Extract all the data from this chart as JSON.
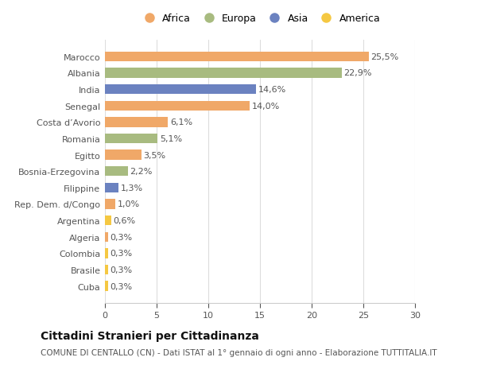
{
  "categories": [
    "Cuba",
    "Brasile",
    "Colombia",
    "Algeria",
    "Argentina",
    "Rep. Dem. d/Congo",
    "Filippine",
    "Bosnia-Erzegovina",
    "Egitto",
    "Romania",
    "Costa d’Avorio",
    "Senegal",
    "India",
    "Albania",
    "Marocco"
  ],
  "values": [
    0.3,
    0.3,
    0.3,
    0.3,
    0.6,
    1.0,
    1.3,
    2.2,
    3.5,
    5.1,
    6.1,
    14.0,
    14.6,
    22.9,
    25.5
  ],
  "labels": [
    "0,3%",
    "0,3%",
    "0,3%",
    "0,3%",
    "0,6%",
    "1,0%",
    "1,3%",
    "2,2%",
    "3,5%",
    "5,1%",
    "6,1%",
    "14,0%",
    "14,6%",
    "22,9%",
    "25,5%"
  ],
  "colors": [
    "#F5C842",
    "#F5C842",
    "#F5C842",
    "#F0A868",
    "#F5C842",
    "#F0A868",
    "#6B82C0",
    "#A8BB80",
    "#F0A868",
    "#A8BB80",
    "#F0A868",
    "#F0A868",
    "#6B82C0",
    "#A8BB80",
    "#F0A868"
  ],
  "legend_labels": [
    "Africa",
    "Europa",
    "Asia",
    "America"
  ],
  "legend_colors": [
    "#F0A868",
    "#A8BB80",
    "#6B82C0",
    "#F5C842"
  ],
  "title": "Cittadini Stranieri per Cittadinanza",
  "subtitle": "COMUNE DI CENTALLO (CN) - Dati ISTAT al 1° gennaio di ogni anno - Elaborazione TUTTITALIA.IT",
  "xlim": [
    0,
    30
  ],
  "xticks": [
    0,
    5,
    10,
    15,
    20,
    25,
    30
  ],
  "bg_color": "#ffffff",
  "bar_height": 0.6,
  "title_fontsize": 10,
  "subtitle_fontsize": 7.5,
  "label_fontsize": 8,
  "tick_fontsize": 8,
  "legend_fontsize": 9
}
